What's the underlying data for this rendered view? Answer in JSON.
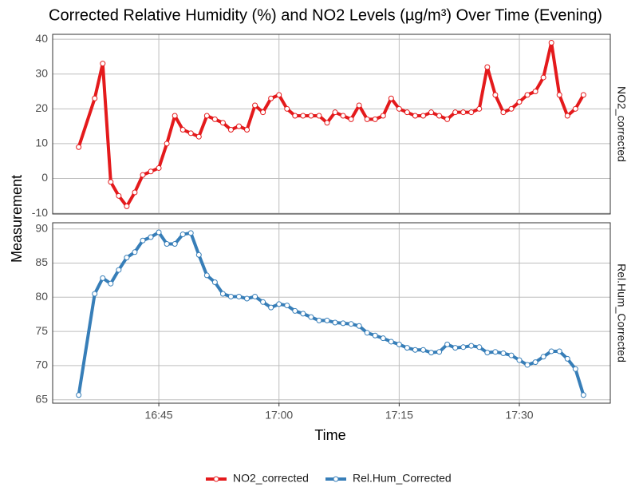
{
  "chart_data": {
    "type": "line",
    "title": "Corrected Relative Humidity (%) and NO2 Levels (µg/m³) Over Time (Evening)",
    "x_label": "Time",
    "y_label": "Measurement",
    "x": [
      "16:35",
      "16:37",
      "16:38",
      "16:39",
      "16:40",
      "16:41",
      "16:42",
      "16:43",
      "16:44",
      "16:45",
      "16:46",
      "16:47",
      "16:48",
      "16:49",
      "16:50",
      "16:51",
      "16:52",
      "16:53",
      "16:54",
      "16:55",
      "16:56",
      "16:57",
      "16:58",
      "16:59",
      "17:00",
      "17:01",
      "17:02",
      "17:03",
      "17:04",
      "17:05",
      "17:06",
      "17:07",
      "17:08",
      "17:09",
      "17:10",
      "17:11",
      "17:12",
      "17:13",
      "17:14",
      "17:15",
      "17:16",
      "17:17",
      "17:18",
      "17:19",
      "17:20",
      "17:21",
      "17:22",
      "17:23",
      "17:24",
      "17:25",
      "17:26",
      "17:27",
      "17:28",
      "17:29",
      "17:30",
      "17:31",
      "17:32",
      "17:33",
      "17:34",
      "17:35",
      "17:36",
      "17:37",
      "17:38"
    ],
    "xlim": [
      "16:31:45",
      "17:41:21"
    ],
    "xticks": [
      "16:45",
      "17:00",
      "17:15",
      "17:30"
    ],
    "grid": true,
    "legend": "bottom",
    "series": [
      {
        "name": "NO2_corrected",
        "color": "#e41a1c",
        "ylim": [
          -10.2,
          41.4
        ],
        "yticks": [
          -10,
          0,
          10,
          20,
          30,
          40
        ],
        "values": [
          9,
          23,
          33,
          -1,
          -5,
          -8,
          -4,
          1,
          2,
          3,
          10,
          18,
          14,
          13,
          12,
          18,
          17,
          16,
          14,
          15,
          14,
          21,
          19,
          23,
          24,
          20,
          18,
          18,
          18,
          18,
          16,
          19,
          18,
          17,
          21,
          17,
          17,
          18,
          23,
          20,
          19,
          18,
          18,
          19,
          18,
          17,
          19,
          19,
          19,
          20,
          32,
          24,
          19,
          20,
          22,
          24,
          25,
          29,
          39,
          24,
          18,
          20,
          24
        ]
      },
      {
        "name": "Rel.Hum_Corrected",
        "color": "#377eb8",
        "ylim": [
          64.5,
          90.9
        ],
        "yticks": [
          65,
          70,
          75,
          80,
          85,
          90
        ],
        "values": [
          65.7,
          80.5,
          82.8,
          82,
          84,
          85.8,
          86.6,
          88.3,
          88.8,
          89.5,
          87.8,
          87.8,
          89.2,
          89.4,
          86.2,
          83.2,
          82.2,
          80.5,
          80.1,
          80.1,
          79.8,
          80.1,
          79.3,
          78.5,
          79,
          78.8,
          78,
          77.6,
          77.1,
          76.6,
          76.6,
          76.3,
          76.2,
          76.1,
          75.8,
          74.8,
          74.4,
          74,
          73.5,
          73.1,
          72.6,
          72.3,
          72.3,
          71.9,
          72,
          73.1,
          72.6,
          72.7,
          72.9,
          72.7,
          71.9,
          72,
          71.8,
          71.5,
          70.8,
          70.1,
          70.5,
          71.3,
          72.1,
          72.1,
          71,
          69.5,
          65.7
        ]
      }
    ]
  }
}
